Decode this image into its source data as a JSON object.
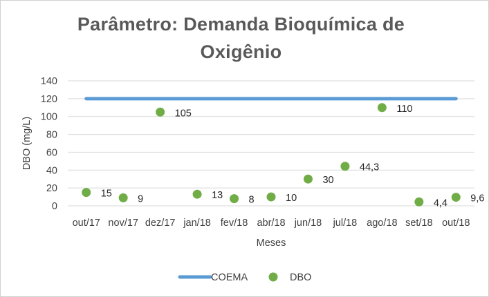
{
  "chart_data": {
    "type": "line+scatter",
    "title_line1": "Parâmetro: Demanda Bioquímica de",
    "title_line2": "Oxigênio",
    "xlabel": "Meses",
    "ylabel": "DBO (mg/L)",
    "ylim": [
      0,
      140
    ],
    "yticks": [
      0,
      20,
      40,
      60,
      80,
      100,
      120,
      140
    ],
    "grid": true,
    "legend_position": "bottom",
    "categories": [
      "out/17",
      "nov/17",
      "dez/17",
      "jan/18",
      "fev/18",
      "abr/18",
      "jun/18",
      "jul/18",
      "ago/18",
      "set/18",
      "out/18"
    ],
    "series": [
      {
        "name": "COEMA",
        "kind": "line",
        "color": "#5b9bd5",
        "values": [
          120,
          120,
          120,
          120,
          120,
          120,
          120,
          120,
          120,
          120,
          120
        ]
      },
      {
        "name": "DBO",
        "kind": "scatter",
        "color": "#70ad47",
        "values": [
          15,
          9,
          105,
          13,
          8,
          10,
          30,
          44.3,
          110,
          4.4,
          9.6
        ],
        "labels": [
          "15",
          "9",
          "105",
          "13",
          "8",
          "10",
          "30",
          "44,3",
          "110",
          "4,4",
          "9,6"
        ]
      }
    ]
  }
}
